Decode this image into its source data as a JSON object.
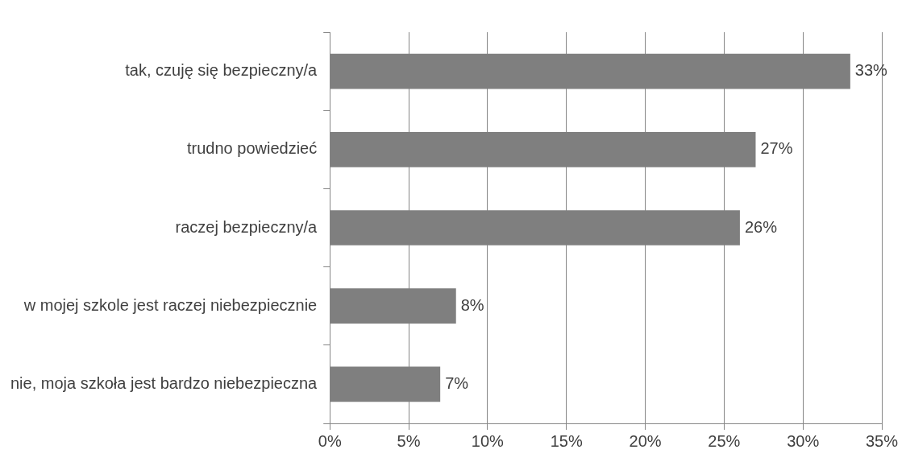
{
  "chart_data": {
    "type": "bar",
    "orientation": "horizontal",
    "categories": [
      "tak, czuję się bezpieczny/a",
      "trudno powiedzieć",
      "raczej bezpieczny/a",
      "w mojej szkole jest raczej niebezpiecznie",
      "nie, moja szkoła jest bardzo niebezpieczna"
    ],
    "values": [
      33,
      27,
      26,
      8,
      7
    ],
    "value_labels": [
      "33%",
      "27%",
      "26%",
      "8%",
      "7%"
    ],
    "color": "#7f7f7f",
    "xlim": [
      0,
      35
    ],
    "xticks": [
      {
        "value": 0,
        "label": "0%"
      },
      {
        "value": 5,
        "label": "5%"
      },
      {
        "value": 10,
        "label": "10%"
      },
      {
        "value": 15,
        "label": "15%"
      },
      {
        "value": 20,
        "label": "20%"
      },
      {
        "value": 25,
        "label": "25%"
      },
      {
        "value": 30,
        "label": "30%"
      },
      {
        "value": 35,
        "label": "35%"
      }
    ],
    "grid": "x",
    "legend": false
  }
}
